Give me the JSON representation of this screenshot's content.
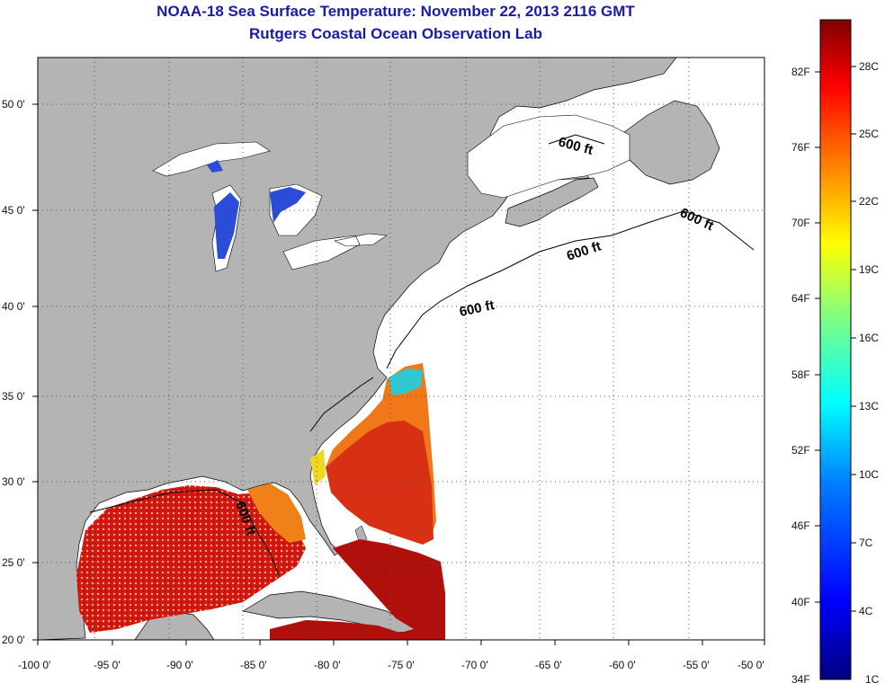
{
  "title": {
    "line1": "NOAA-18 Sea Surface Temperature:  November 22, 2013 2116 GMT",
    "line2": "Rutgers Coastal Ocean Observation Lab"
  },
  "colors": {
    "land": "#b4b4b4",
    "ocean_no_data": "#ffffff",
    "title": "#1a1aa8",
    "grid": "#555555"
  },
  "axes": {
    "lon_labels": [
      "-100 0'",
      "-95 0'",
      "-90 0'",
      "-85 0'",
      "-80 0'",
      "-75 0'",
      "-70 0'",
      "-65 0'",
      "-60 0'",
      "-55 0'",
      "-50 0'"
    ],
    "lat_labels": [
      "20 0'",
      "25 0'",
      "30 0'",
      "35 0'",
      "40 0'",
      "45 0'",
      "50 0'"
    ]
  },
  "contours": {
    "label": "600 ft",
    "count": 5
  },
  "colorbar": {
    "fahrenheit": [
      "82F",
      "76F",
      "70F",
      "64F",
      "58F",
      "52F",
      "46F",
      "40F",
      "34F"
    ],
    "celsius": [
      "28C",
      "25C",
      "22C",
      "19C",
      "16C",
      "13C",
      "10C",
      "7C",
      "4C",
      "1C"
    ],
    "stops": [
      "#00007f",
      "#0000ff",
      "#0080ff",
      "#00ffff",
      "#80ff80",
      "#ffff00",
      "#ff8000",
      "#ff0000",
      "#7f0000"
    ]
  }
}
